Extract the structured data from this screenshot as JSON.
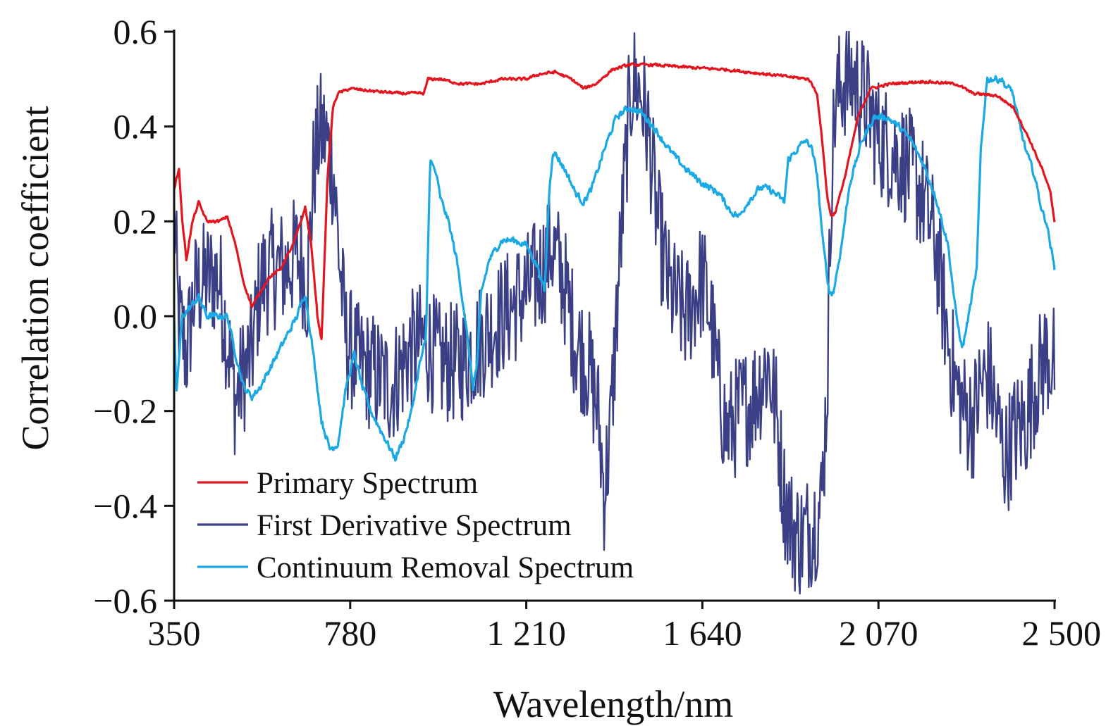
{
  "chart_data": {
    "type": "line",
    "title": "",
    "xlabel": "Wavelength/nm",
    "ylabel": "Correlation coefficient",
    "xlim": [
      350,
      2500
    ],
    "ylim": [
      -0.6,
      0.6
    ],
    "x_ticks": [
      350,
      780,
      1210,
      1640,
      2070,
      2500
    ],
    "x_tick_labels": [
      "350",
      "780",
      "1 210",
      "1 640",
      "2 070",
      "2 500"
    ],
    "y_ticks": [
      0.6,
      0.4,
      0.2,
      0.0,
      -0.2,
      -0.4,
      -0.6
    ],
    "y_tick_labels": [
      "0.6",
      "0.4",
      "0.2",
      "0.0",
      "−0.2",
      "−0.4",
      "−0.6"
    ],
    "grid": false,
    "legend_position": "bottom-left",
    "series": [
      {
        "name": "Primary Spectrum",
        "color": "#e3161f",
        "noise": 0.004,
        "points": [
          [
            350,
            0.27
          ],
          [
            362,
            0.31
          ],
          [
            370,
            0.2
          ],
          [
            380,
            0.12
          ],
          [
            395,
            0.2
          ],
          [
            410,
            0.24
          ],
          [
            430,
            0.2
          ],
          [
            460,
            0.2
          ],
          [
            480,
            0.21
          ],
          [
            500,
            0.15
          ],
          [
            520,
            0.07
          ],
          [
            540,
            0.02
          ],
          [
            560,
            0.05
          ],
          [
            580,
            0.08
          ],
          [
            610,
            0.1
          ],
          [
            640,
            0.15
          ],
          [
            660,
            0.2
          ],
          [
            670,
            0.23
          ],
          [
            685,
            0.15
          ],
          [
            700,
            0.0
          ],
          [
            710,
            -0.05
          ],
          [
            725,
            0.3
          ],
          [
            738,
            0.44
          ],
          [
            750,
            0.47
          ],
          [
            780,
            0.48
          ],
          [
            830,
            0.475
          ],
          [
            900,
            0.47
          ],
          [
            960,
            0.47
          ],
          [
            970,
            0.5
          ],
          [
            1000,
            0.5
          ],
          [
            1050,
            0.49
          ],
          [
            1100,
            0.49
          ],
          [
            1150,
            0.5
          ],
          [
            1210,
            0.5
          ],
          [
            1240,
            0.51
          ],
          [
            1280,
            0.515
          ],
          [
            1320,
            0.5
          ],
          [
            1350,
            0.48
          ],
          [
            1380,
            0.49
          ],
          [
            1420,
            0.52
          ],
          [
            1460,
            0.53
          ],
          [
            1520,
            0.53
          ],
          [
            1600,
            0.525
          ],
          [
            1700,
            0.52
          ],
          [
            1800,
            0.51
          ],
          [
            1850,
            0.505
          ],
          [
            1900,
            0.5
          ],
          [
            1920,
            0.47
          ],
          [
            1935,
            0.35
          ],
          [
            1945,
            0.25
          ],
          [
            1955,
            0.21
          ],
          [
            1965,
            0.22
          ],
          [
            1990,
            0.3
          ],
          [
            2020,
            0.42
          ],
          [
            2050,
            0.48
          ],
          [
            2100,
            0.49
          ],
          [
            2180,
            0.495
          ],
          [
            2260,
            0.49
          ],
          [
            2300,
            0.47
          ],
          [
            2360,
            0.465
          ],
          [
            2400,
            0.44
          ],
          [
            2440,
            0.37
          ],
          [
            2470,
            0.31
          ],
          [
            2490,
            0.26
          ],
          [
            2500,
            0.2
          ]
        ]
      },
      {
        "name": "First Derivative Spectrum",
        "color": "#3a3f86",
        "noise": 0.13,
        "points": [
          [
            350,
            0.23
          ],
          [
            360,
            0.0
          ],
          [
            380,
            -0.08
          ],
          [
            400,
            0.05
          ],
          [
            430,
            0.08
          ],
          [
            460,
            0.08
          ],
          [
            480,
            -0.05
          ],
          [
            500,
            -0.18
          ],
          [
            520,
            -0.12
          ],
          [
            540,
            -0.08
          ],
          [
            560,
            0.07
          ],
          [
            590,
            0.1
          ],
          [
            620,
            0.1
          ],
          [
            650,
            0.13
          ],
          [
            665,
            0.1
          ],
          [
            675,
            0.05
          ],
          [
            690,
            0.3
          ],
          [
            705,
            0.39
          ],
          [
            720,
            0.38
          ],
          [
            740,
            0.3
          ],
          [
            755,
            0.1
          ],
          [
            770,
            -0.05
          ],
          [
            800,
            -0.1
          ],
          [
            840,
            -0.12
          ],
          [
            880,
            -0.15
          ],
          [
            920,
            -0.08
          ],
          [
            960,
            -0.05
          ],
          [
            1000,
            -0.1
          ],
          [
            1050,
            -0.1
          ],
          [
            1100,
            -0.05
          ],
          [
            1150,
            0.0
          ],
          [
            1210,
            0.05
          ],
          [
            1250,
            0.1
          ],
          [
            1270,
            0.15
          ],
          [
            1300,
            0.08
          ],
          [
            1330,
            -0.05
          ],
          [
            1360,
            -0.1
          ],
          [
            1385,
            -0.2
          ],
          [
            1400,
            -0.37
          ],
          [
            1415,
            -0.25
          ],
          [
            1440,
            0.15
          ],
          [
            1460,
            0.42
          ],
          [
            1470,
            0.5
          ],
          [
            1490,
            0.47
          ],
          [
            1510,
            0.38
          ],
          [
            1530,
            0.2
          ],
          [
            1560,
            0.05
          ],
          [
            1600,
            0.0
          ],
          [
            1640,
            0.08
          ],
          [
            1660,
            0.0
          ],
          [
            1680,
            -0.15
          ],
          [
            1700,
            -0.25
          ],
          [
            1730,
            -0.2
          ],
          [
            1760,
            -0.18
          ],
          [
            1800,
            -0.1
          ],
          [
            1820,
            -0.2
          ],
          [
            1840,
            -0.38
          ],
          [
            1860,
            -0.45
          ],
          [
            1880,
            -0.47
          ],
          [
            1910,
            -0.44
          ],
          [
            1930,
            -0.4
          ],
          [
            1945,
            -0.15
          ],
          [
            1955,
            0.3
          ],
          [
            1965,
            0.45
          ],
          [
            1985,
            0.5
          ],
          [
            2010,
            0.5
          ],
          [
            2040,
            0.45
          ],
          [
            2070,
            0.38
          ],
          [
            2100,
            0.35
          ],
          [
            2140,
            0.32
          ],
          [
            2180,
            0.25
          ],
          [
            2210,
            0.15
          ],
          [
            2240,
            -0.05
          ],
          [
            2260,
            -0.15
          ],
          [
            2280,
            -0.2
          ],
          [
            2300,
            -0.22
          ],
          [
            2320,
            -0.15
          ],
          [
            2340,
            -0.12
          ],
          [
            2360,
            -0.22
          ],
          [
            2380,
            -0.3
          ],
          [
            2400,
            -0.25
          ],
          [
            2430,
            -0.22
          ],
          [
            2450,
            -0.15
          ],
          [
            2480,
            -0.08
          ],
          [
            2500,
            -0.1
          ]
        ]
      },
      {
        "name": "Continuum Removal Spectrum",
        "color": "#1aa9e4",
        "noise": 0.01,
        "points": [
          [
            350,
            0.0
          ],
          [
            355,
            -0.17
          ],
          [
            370,
            0.0
          ],
          [
            390,
            0.02
          ],
          [
            410,
            0.04
          ],
          [
            430,
            0.0
          ],
          [
            460,
            0.0
          ],
          [
            480,
            0.0
          ],
          [
            500,
            -0.08
          ],
          [
            520,
            -0.15
          ],
          [
            540,
            -0.17
          ],
          [
            560,
            -0.15
          ],
          [
            590,
            -0.1
          ],
          [
            620,
            -0.05
          ],
          [
            650,
            0.0
          ],
          [
            670,
            0.05
          ],
          [
            690,
            -0.08
          ],
          [
            710,
            -0.22
          ],
          [
            730,
            -0.28
          ],
          [
            750,
            -0.27
          ],
          [
            770,
            -0.15
          ],
          [
            790,
            -0.08
          ],
          [
            810,
            -0.15
          ],
          [
            830,
            -0.2
          ],
          [
            860,
            -0.25
          ],
          [
            890,
            -0.3
          ],
          [
            910,
            -0.26
          ],
          [
            930,
            -0.2
          ],
          [
            950,
            -0.1
          ],
          [
            965,
            -0.05
          ],
          [
            975,
            0.33
          ],
          [
            990,
            0.3
          ],
          [
            1000,
            0.25
          ],
          [
            1020,
            0.2
          ],
          [
            1040,
            0.12
          ],
          [
            1060,
            0.0
          ],
          [
            1080,
            -0.15
          ],
          [
            1090,
            -0.1
          ],
          [
            1100,
            0.05
          ],
          [
            1120,
            0.12
          ],
          [
            1150,
            0.16
          ],
          [
            1180,
            0.16
          ],
          [
            1210,
            0.15
          ],
          [
            1240,
            0.1
          ],
          [
            1255,
            0.05
          ],
          [
            1265,
            0.25
          ],
          [
            1275,
            0.35
          ],
          [
            1290,
            0.33
          ],
          [
            1310,
            0.3
          ],
          [
            1330,
            0.26
          ],
          [
            1350,
            0.24
          ],
          [
            1370,
            0.27
          ],
          [
            1400,
            0.35
          ],
          [
            1430,
            0.42
          ],
          [
            1460,
            0.44
          ],
          [
            1490,
            0.43
          ],
          [
            1520,
            0.4
          ],
          [
            1560,
            0.35
          ],
          [
            1600,
            0.31
          ],
          [
            1640,
            0.28
          ],
          [
            1680,
            0.26
          ],
          [
            1710,
            0.22
          ],
          [
            1730,
            0.21
          ],
          [
            1750,
            0.24
          ],
          [
            1780,
            0.27
          ],
          [
            1800,
            0.27
          ],
          [
            1830,
            0.25
          ],
          [
            1840,
            0.24
          ],
          [
            1850,
            0.33
          ],
          [
            1870,
            0.35
          ],
          [
            1890,
            0.37
          ],
          [
            1905,
            0.36
          ],
          [
            1920,
            0.3
          ],
          [
            1935,
            0.15
          ],
          [
            1950,
            0.05
          ],
          [
            1960,
            0.05
          ],
          [
            1980,
            0.15
          ],
          [
            2000,
            0.28
          ],
          [
            2030,
            0.37
          ],
          [
            2060,
            0.42
          ],
          [
            2090,
            0.42
          ],
          [
            2120,
            0.4
          ],
          [
            2150,
            0.37
          ],
          [
            2180,
            0.32
          ],
          [
            2210,
            0.25
          ],
          [
            2240,
            0.15
          ],
          [
            2260,
            0.0
          ],
          [
            2275,
            -0.07
          ],
          [
            2290,
            0.0
          ],
          [
            2310,
            0.1
          ],
          [
            2320,
            0.35
          ],
          [
            2335,
            0.5
          ],
          [
            2350,
            0.5
          ],
          [
            2370,
            0.5
          ],
          [
            2385,
            0.48
          ],
          [
            2395,
            0.48
          ],
          [
            2410,
            0.42
          ],
          [
            2430,
            0.35
          ],
          [
            2450,
            0.3
          ],
          [
            2470,
            0.22
          ],
          [
            2480,
            0.2
          ],
          [
            2490,
            0.15
          ],
          [
            2500,
            0.1
          ]
        ]
      }
    ]
  }
}
